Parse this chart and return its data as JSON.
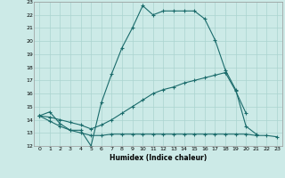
{
  "xlabel": "Humidex (Indice chaleur)",
  "bg_color": "#cceae7",
  "grid_color": "#aad4d0",
  "line_color": "#1a6b6b",
  "xlim": [
    -0.5,
    23.5
  ],
  "ylim": [
    12,
    23
  ],
  "xticks": [
    0,
    1,
    2,
    3,
    4,
    5,
    6,
    7,
    8,
    9,
    10,
    11,
    12,
    13,
    14,
    15,
    16,
    17,
    18,
    19,
    20,
    21,
    22,
    23
  ],
  "yticks": [
    12,
    13,
    14,
    15,
    16,
    17,
    18,
    19,
    20,
    21,
    22,
    23
  ],
  "line1_x": [
    0,
    1,
    2,
    3,
    4,
    5,
    6,
    7,
    8,
    9,
    10,
    11,
    12,
    13,
    14,
    15,
    16,
    17,
    18,
    19,
    20,
    21
  ],
  "line1_y": [
    14.3,
    14.6,
    13.7,
    13.2,
    13.2,
    12.0,
    15.3,
    17.5,
    19.5,
    21.0,
    22.7,
    22.0,
    22.3,
    22.3,
    22.3,
    22.3,
    21.7,
    20.1,
    17.8,
    16.3,
    13.5,
    12.9
  ],
  "line2_x": [
    0,
    1,
    2,
    3,
    4,
    5,
    6,
    7,
    8,
    9,
    10,
    11,
    12,
    13,
    14,
    15,
    16,
    17,
    18,
    19,
    20
  ],
  "line2_y": [
    14.3,
    14.2,
    14.0,
    13.8,
    13.6,
    13.3,
    13.6,
    14.0,
    14.5,
    15.0,
    15.5,
    16.0,
    16.3,
    16.5,
    16.8,
    17.0,
    17.2,
    17.4,
    17.6,
    16.2,
    14.5
  ],
  "line3_x": [
    0,
    1,
    2,
    3,
    4,
    5,
    6,
    7,
    8,
    9,
    10,
    11,
    12,
    13,
    14,
    15,
    16,
    17,
    18,
    19,
    20,
    21,
    22,
    23
  ],
  "line3_y": [
    14.3,
    13.9,
    13.5,
    13.2,
    13.0,
    12.8,
    12.8,
    12.9,
    12.9,
    12.9,
    12.9,
    12.9,
    12.9,
    12.9,
    12.9,
    12.9,
    12.9,
    12.9,
    12.9,
    12.9,
    12.9,
    12.8,
    12.8,
    12.7
  ]
}
